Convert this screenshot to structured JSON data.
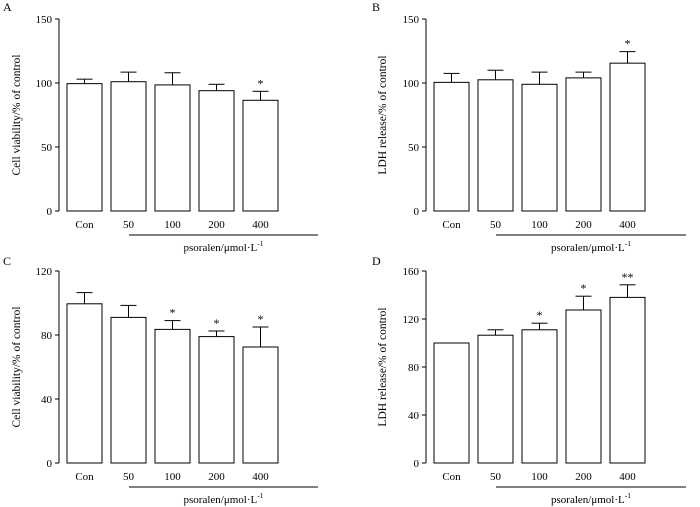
{
  "chart_data": [
    {
      "type": "bar",
      "panel_label": "A",
      "categories": [
        "Con",
        "50",
        "100",
        "200",
        "400"
      ],
      "values": [
        99.5,
        101,
        98.5,
        94,
        86.5
      ],
      "errors": [
        3.5,
        7.5,
        9.5,
        5,
        7
      ],
      "significance": [
        "",
        "",
        "",
        "",
        "*"
      ],
      "ylabel": "Cell viability/% of control",
      "xlabel": "psoralen/μmol·L",
      "xlabel_sup": "-1",
      "ylim": [
        0,
        150
      ],
      "yticks": [
        0,
        50,
        100,
        150
      ],
      "ytick_labels": [
        "0",
        "50",
        "100",
        "150"
      ]
    },
    {
      "type": "bar",
      "panel_label": "B",
      "categories": [
        "Con",
        "50",
        "100",
        "200",
        "400"
      ],
      "values": [
        100.5,
        102.5,
        99,
        104,
        115.5
      ],
      "errors": [
        7,
        7.5,
        9.5,
        4.5,
        9
      ],
      "significance": [
        "",
        "",
        "",
        "",
        "*"
      ],
      "ylabel": "LDH release/% of control",
      "xlabel": "psoralen/μmol·L",
      "xlabel_sup": "-1",
      "ylim": [
        0,
        150
      ],
      "yticks": [
        0,
        50,
        100,
        150
      ],
      "ytick_labels": [
        "0",
        "50",
        "100",
        "150"
      ]
    },
    {
      "type": "bar",
      "panel_label": "C",
      "categories": [
        "Con",
        "50",
        "100",
        "200",
        "400"
      ],
      "values": [
        99.5,
        91,
        83.5,
        79,
        72.5
      ],
      "errors": [
        7,
        7.5,
        5.5,
        3.5,
        12.5
      ],
      "significance": [
        "",
        "",
        "*",
        "*",
        "*"
      ],
      "ylabel": "Cell viability/% of control",
      "xlabel": "psoralen/μmol·L",
      "xlabel_sup": "-1",
      "ylim": [
        0,
        120
      ],
      "yticks": [
        0,
        40,
        80,
        120
      ],
      "ytick_labels": [
        "0",
        "40",
        "80",
        "120"
      ]
    },
    {
      "type": "bar",
      "panel_label": "D",
      "categories": [
        "Con",
        "50",
        "100",
        "200",
        "400"
      ],
      "values": [
        100,
        106.5,
        111,
        127.5,
        138
      ],
      "errors": [
        0,
        4.5,
        5.5,
        11.5,
        10.5
      ],
      "significance": [
        "",
        "",
        "*",
        "*",
        "**"
      ],
      "ylabel": "LDH release/% of control",
      "xlabel": "psoralen/μmol·L",
      "xlabel_sup": "-1",
      "ylim": [
        0,
        160
      ],
      "yticks": [
        0,
        40,
        80,
        120,
        160
      ],
      "ytick_labels": [
        "0",
        "40",
        "80",
        "120",
        "160"
      ]
    }
  ]
}
